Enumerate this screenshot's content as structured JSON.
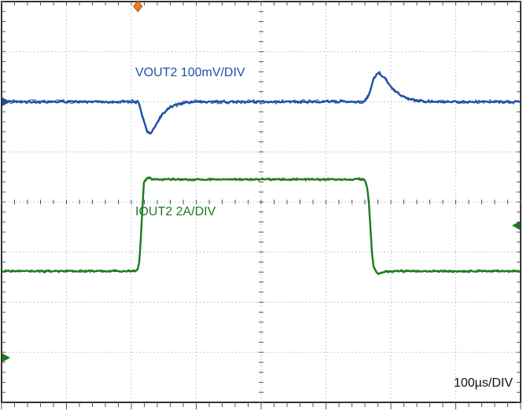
{
  "chart_data": {
    "type": "line",
    "instrument": "oscilloscope",
    "title": "",
    "timebase_label": "100µs/DIV",
    "divisions": {
      "x": 8,
      "y": 8
    },
    "series": [
      {
        "name": "VOUT2",
        "label": "VOUT2 100mV/DIV",
        "scale_per_div": "100mV",
        "color": "#1c50a8",
        "noise": 1.9,
        "points_div": [
          [
            0,
            2.0
          ],
          [
            2.11,
            2.0
          ],
          [
            2.17,
            2.28
          ],
          [
            2.24,
            2.58
          ],
          [
            2.29,
            2.64
          ],
          [
            2.36,
            2.5
          ],
          [
            2.47,
            2.26
          ],
          [
            2.6,
            2.1
          ],
          [
            2.78,
            2.03
          ],
          [
            3.0,
            2.0
          ],
          [
            5.6,
            2.0
          ],
          [
            5.66,
            1.86
          ],
          [
            5.74,
            1.52
          ],
          [
            5.81,
            1.41
          ],
          [
            5.9,
            1.52
          ],
          [
            6.02,
            1.73
          ],
          [
            6.18,
            1.9
          ],
          [
            6.4,
            1.98
          ],
          [
            6.6,
            2.0
          ],
          [
            8,
            2.0
          ]
        ]
      },
      {
        "name": "IOUT2",
        "label": "IOUT2 2A/DIV",
        "scale_per_div": "2A",
        "color": "#1e7a1e",
        "noise": 1.4,
        "points_div": [
          [
            0,
            5.38
          ],
          [
            2.09,
            5.38
          ],
          [
            2.13,
            5.15
          ],
          [
            2.19,
            3.62
          ],
          [
            2.25,
            3.5
          ],
          [
            2.33,
            3.55
          ],
          [
            2.5,
            3.55
          ],
          [
            5.6,
            3.55
          ],
          [
            5.65,
            3.8
          ],
          [
            5.72,
            5.25
          ],
          [
            5.79,
            5.43
          ],
          [
            5.92,
            5.39
          ],
          [
            6.1,
            5.38
          ],
          [
            8,
            5.38
          ]
        ]
      }
    ],
    "markers": [
      {
        "name": "trigger-marker",
        "edge": "top",
        "pos_div": 2.1,
        "color": "#ee7a2e",
        "shape": "diamond"
      },
      {
        "name": "vout2-reference-marker",
        "edge": "left",
        "pos_div": 2.0,
        "color": "#1c50a8",
        "shape": "arrow-right"
      },
      {
        "name": "iout2-level-marker",
        "edge": "right",
        "pos_div": 4.47,
        "color": "#1e7a1e",
        "shape": "arrow-left"
      },
      {
        "name": "iout2-zero-marker",
        "edge": "left",
        "pos_div": 7.11,
        "color": "#1e7a1e",
        "shape": "arrow-right"
      }
    ],
    "grid": {
      "background": "#ffffff",
      "border_color": "#333333",
      "dot_color": "#b8b8b8",
      "tick_color": "#555555"
    }
  }
}
